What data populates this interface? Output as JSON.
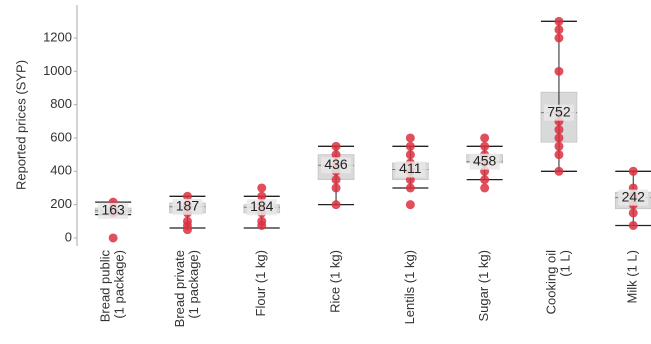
{
  "chart_data": {
    "type": "box",
    "y_label": "Reported prices (SYP)",
    "categories": [
      [
        "Bread public",
        "(1 package)"
      ],
      [
        "Bread private",
        "(1 package)"
      ],
      [
        "Flour (1 kg)"
      ],
      [
        "Rice (1 kg)"
      ],
      [
        "Lentils (1 kg)"
      ],
      [
        "Sugar (1 kg)"
      ],
      [
        "Cooking oil",
        "(1 L)"
      ],
      [
        "Milk (1 L)"
      ]
    ],
    "boxes": [
      {
        "whisker_low": 140,
        "q1": 150,
        "median": 163,
        "q3": 180,
        "whisker_high": 215,
        "points": [
          0,
          150,
          163,
          175,
          215
        ]
      },
      {
        "whisker_low": 60,
        "q1": 150,
        "median": 187,
        "q3": 210,
        "whisker_high": 250,
        "points": [
          50,
          75,
          100,
          150,
          187,
          200,
          250
        ]
      },
      {
        "whisker_low": 60,
        "q1": 150,
        "median": 184,
        "q3": 200,
        "whisker_high": 250,
        "points": [
          75,
          100,
          150,
          200,
          250,
          300
        ]
      },
      {
        "whisker_low": 200,
        "q1": 350,
        "median": 436,
        "q3": 500,
        "whisker_high": 550,
        "points": [
          200,
          300,
          350,
          400,
          436,
          500,
          550
        ]
      },
      {
        "whisker_low": 300,
        "q1": 350,
        "median": 411,
        "q3": 450,
        "whisker_high": 550,
        "points": [
          200,
          300,
          350,
          400,
          450,
          500,
          550,
          600
        ]
      },
      {
        "whisker_low": 350,
        "q1": 450,
        "median": 458,
        "q3": 500,
        "whisker_high": 550,
        "points": [
          300,
          350,
          400,
          450,
          500,
          550,
          600
        ]
      },
      {
        "whisker_low": 400,
        "q1": 575,
        "median": 752,
        "q3": 875,
        "whisker_high": 1300,
        "points": [
          400,
          500,
          550,
          600,
          650,
          700,
          750,
          1000,
          1200,
          1250,
          1300
        ]
      },
      {
        "whisker_low": 75,
        "q1": 175,
        "median": 242,
        "q3": 275,
        "whisker_high": 400,
        "points": [
          75,
          150,
          200,
          250,
          300,
          400
        ]
      }
    ],
    "box_color": "#d9d9d9",
    "point_color": "#dc3040",
    "ylim": [
      -50,
      1380
    ],
    "yticks": [
      0,
      200,
      400,
      600,
      800,
      1000,
      1200
    ],
    "grid": false
  }
}
